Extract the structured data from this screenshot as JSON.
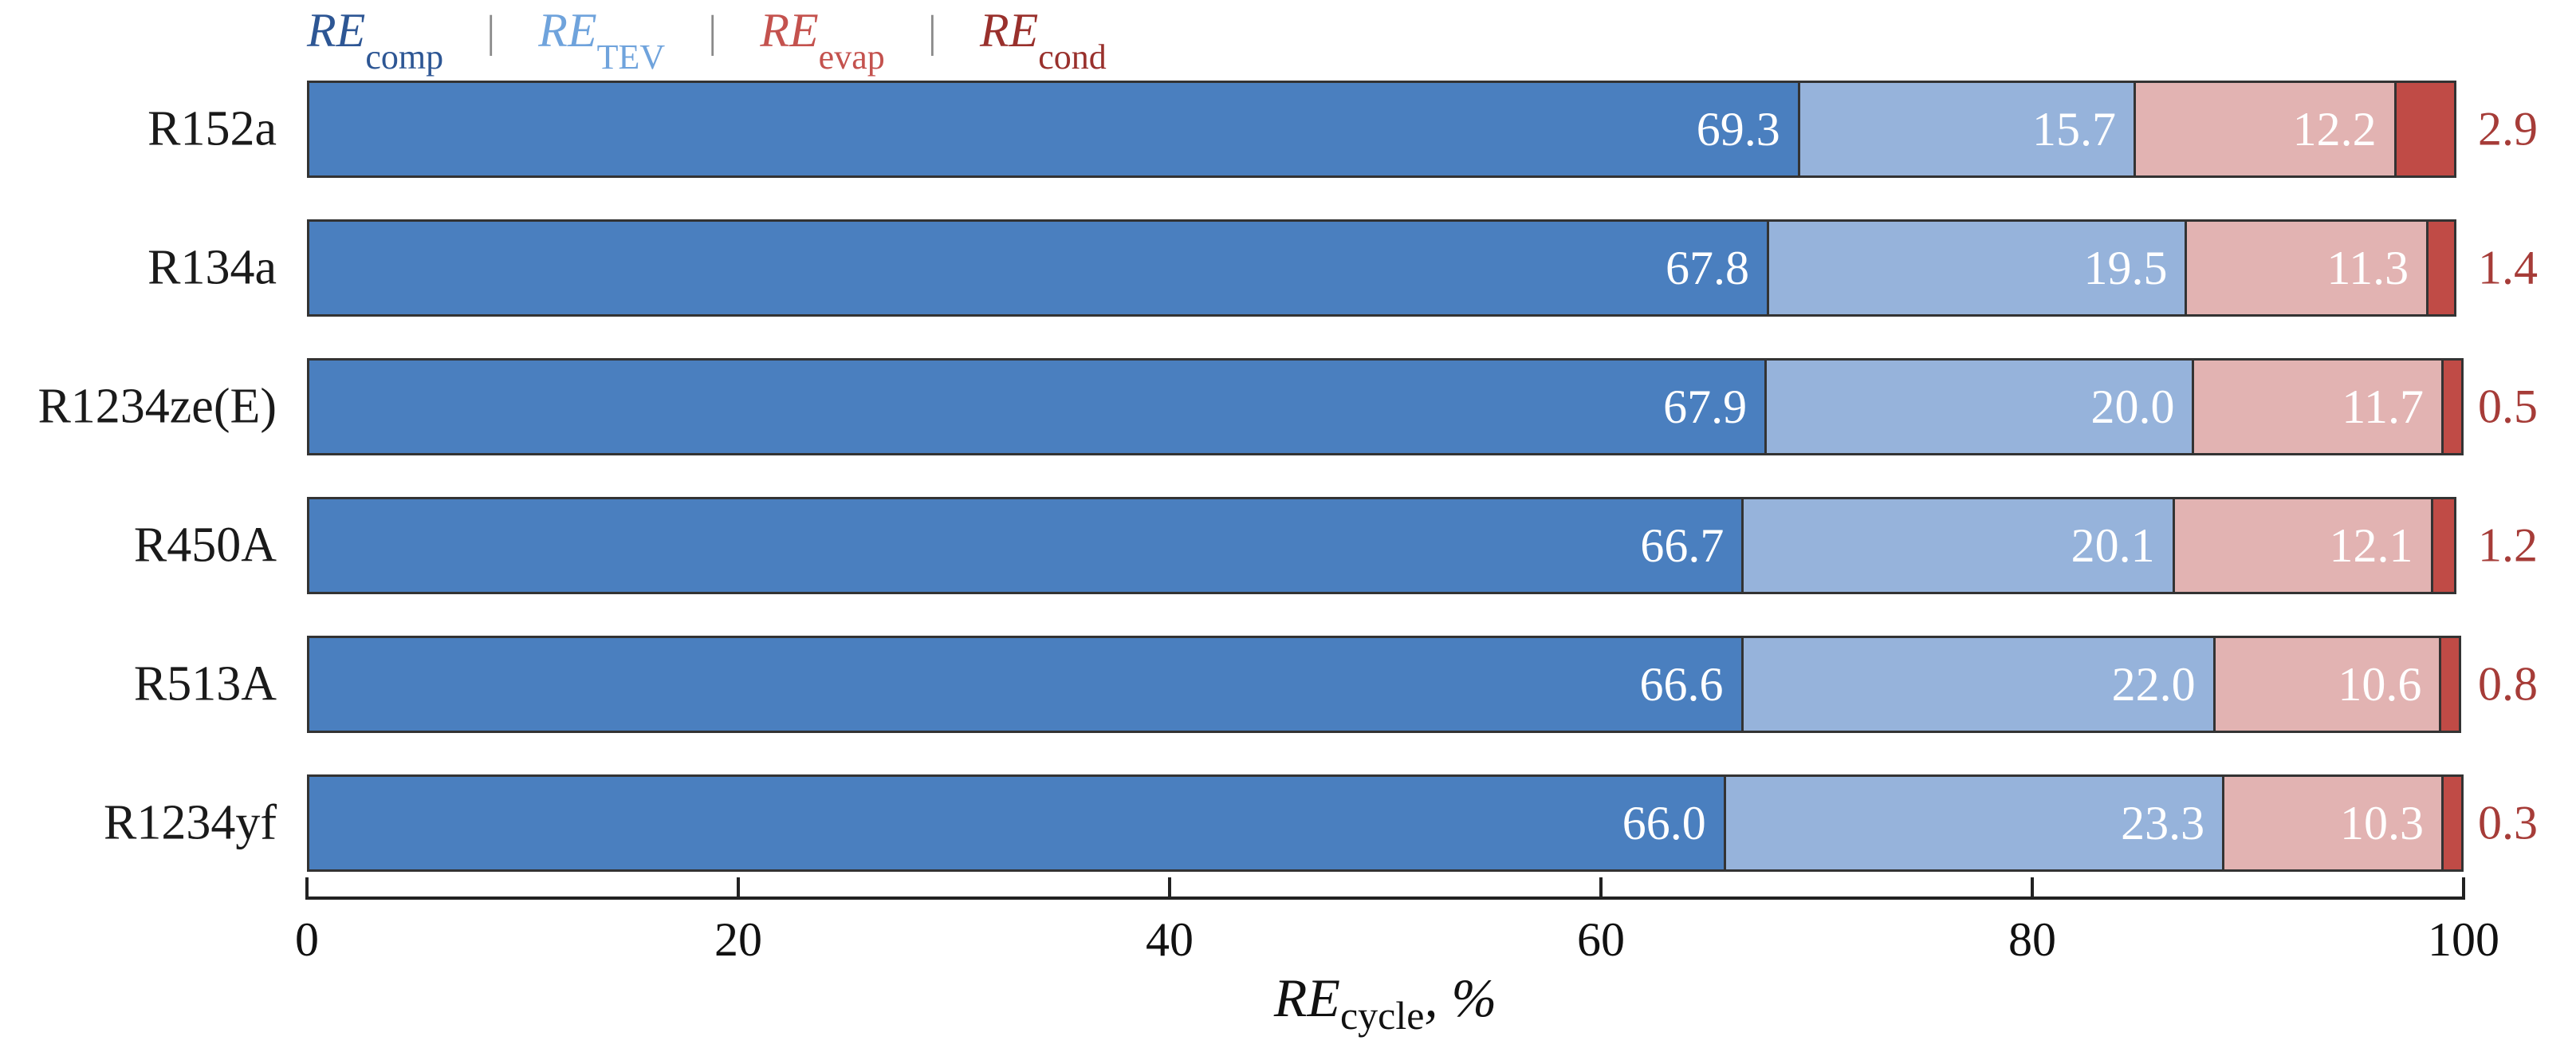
{
  "figure": {
    "legend": {
      "separator": "|",
      "items": [
        {
          "main": "RE",
          "sub": "comp",
          "color": "#2d5694"
        },
        {
          "main": "RE",
          "sub": "TEV",
          "color": "#6fa3dc"
        },
        {
          "main": "RE",
          "sub": "evap",
          "color": "#c4524e"
        },
        {
          "main": "RE",
          "sub": "cond",
          "color": "#99302c"
        }
      ]
    },
    "axis": {
      "title_main": "RE",
      "title_sub": "cycle",
      "title_suffix": ", %"
    }
  },
  "chart_data": {
    "type": "bar",
    "orientation": "horizontal",
    "stacked": true,
    "title": "",
    "xlabel": "RE_cycle, %",
    "ylabel": "",
    "xlim": [
      0,
      100
    ],
    "x_ticks": [
      0,
      20,
      40,
      60,
      80,
      100
    ],
    "grid": false,
    "legend_position": "top",
    "categories": [
      "R152a",
      "R134a",
      "R1234ze(E)",
      "R450A",
      "R513A",
      "R1234yf"
    ],
    "series": [
      {
        "name": "RE_comp",
        "color": "#4a7fbf",
        "label_color": "#ffffff",
        "label_outside": false,
        "values": [
          69.3,
          67.8,
          67.9,
          66.7,
          66.6,
          66.0
        ]
      },
      {
        "name": "RE_TEV",
        "color": "#96b3db",
        "label_color": "#ffffff",
        "label_outside": false,
        "values": [
          15.7,
          19.5,
          20.0,
          20.1,
          22.0,
          23.3
        ]
      },
      {
        "name": "RE_evap",
        "color": "#e2b3b2",
        "label_color": "#ffffff",
        "label_outside": false,
        "values": [
          12.2,
          11.3,
          11.7,
          12.1,
          10.6,
          10.3
        ]
      },
      {
        "name": "RE_cond",
        "color": "#c04b46",
        "label_color": "#a63c38",
        "label_outside": true,
        "values": [
          2.9,
          1.4,
          0.5,
          1.2,
          0.8,
          0.3
        ]
      }
    ]
  }
}
